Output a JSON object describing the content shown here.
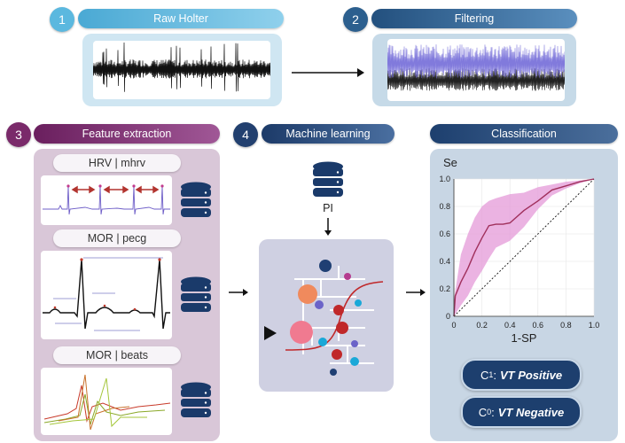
{
  "steps": [
    {
      "number": "1",
      "label": "Raw Holter"
    },
    {
      "number": "2",
      "label": "Filtering"
    },
    {
      "number": "3",
      "label": "Feature extraction"
    },
    {
      "number": "4",
      "label": "Machine learning"
    },
    {
      "number": "",
      "label": "Classification"
    }
  ],
  "features": [
    "HRV | mhrv",
    "MOR | pecg",
    "MOR | beats"
  ],
  "ml": {
    "database_label": "PI"
  },
  "roc": {
    "y_axis_title": "Se",
    "x_axis_title": "1-SP",
    "x_ticks": [
      "0",
      "0.2",
      "0.4",
      "0.6",
      "0.8",
      "1.0"
    ],
    "y_ticks": [
      "0",
      "0.2",
      "0.4",
      "0.6",
      "0.8",
      "1.0"
    ]
  },
  "chart_data": {
    "type": "line",
    "title": "",
    "xlabel": "1-SP",
    "ylabel": "Se",
    "xlim": [
      0,
      1
    ],
    "ylim": [
      0,
      1
    ],
    "series": [
      {
        "name": "ROC mean",
        "x": [
          0,
          0.01,
          0.05,
          0.1,
          0.15,
          0.2,
          0.25,
          0.3,
          0.35,
          0.4,
          0.5,
          0.6,
          0.7,
          0.8,
          0.9,
          1.0
        ],
        "y": [
          0,
          0.15,
          0.25,
          0.35,
          0.47,
          0.57,
          0.66,
          0.67,
          0.67,
          0.68,
          0.77,
          0.84,
          0.92,
          0.95,
          0.98,
          1.0
        ]
      },
      {
        "name": "CI upper",
        "x": [
          0,
          0.05,
          0.1,
          0.15,
          0.2,
          0.25,
          0.3,
          0.4,
          0.5,
          0.6,
          0.7,
          0.8,
          0.9,
          1.0
        ],
        "y": [
          0.12,
          0.45,
          0.6,
          0.72,
          0.8,
          0.84,
          0.86,
          0.89,
          0.9,
          0.94,
          0.96,
          0.98,
          0.99,
          1.0
        ]
      },
      {
        "name": "CI lower",
        "x": [
          0,
          0.05,
          0.1,
          0.15,
          0.2,
          0.25,
          0.3,
          0.4,
          0.5,
          0.6,
          0.7,
          0.8,
          0.9,
          1.0
        ],
        "y": [
          0,
          0.08,
          0.15,
          0.25,
          0.33,
          0.42,
          0.5,
          0.55,
          0.65,
          0.78,
          0.88,
          0.93,
          0.97,
          1.0
        ]
      },
      {
        "name": "Chance",
        "x": [
          0,
          1
        ],
        "y": [
          0,
          1
        ]
      }
    ]
  },
  "classes": [
    {
      "symbol": "C",
      "subscript": "1",
      "separator": ":",
      "label": "VT Positive"
    },
    {
      "symbol": "C",
      "subscript": "0",
      "separator": ":",
      "label": "VT Negative"
    }
  ],
  "colors": {
    "step1": "#5bb8df",
    "step2": "#2c5f8e",
    "step3": "#7a2a6a",
    "step4": "#22406f",
    "classification": "#1d3f6e",
    "roc_line": "#a0305c",
    "roc_band": "#e49ad8"
  }
}
